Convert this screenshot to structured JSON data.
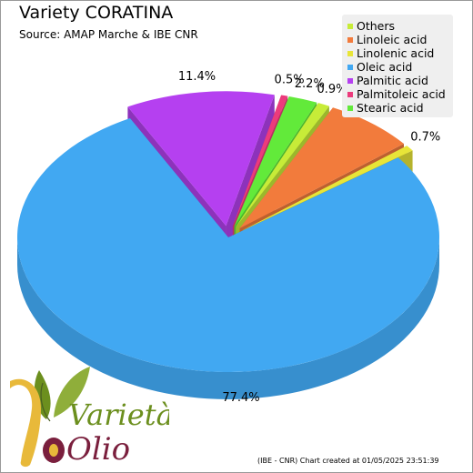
{
  "chart_data": {
    "type": "pie",
    "title": "Variety CORATINA",
    "subtitle": "Source: AMAP Marche & IBE CNR",
    "legend_position": "top-right",
    "categories": [
      "Others",
      "Linoleic acid",
      "Linolenic acid",
      "Oleic acid",
      "Palmitic acid",
      "Palmitoleic acid",
      "Stearic acid"
    ],
    "values": [
      0.9,
      6.9,
      0.7,
      77.4,
      11.4,
      0.5,
      2.2
    ],
    "labels": [
      "0.9%",
      "6.9%",
      "0.7%",
      "77.4%",
      "11.4%",
      "0.5%",
      "2.2%"
    ],
    "colors": [
      "#c7ec38",
      "#f27b3c",
      "#e8e538",
      "#41a8f2",
      "#b540f0",
      "#ec3b7c",
      "#62ea3a"
    ]
  },
  "footer": "(IBE - CNR) Chart created at 01/05/2025 23:51:39",
  "logo": {
    "line1": "Varietà",
    "line2": "Olio",
    "colors": {
      "green": "#6c8f1e",
      "dark_green": "#4a5e22",
      "gold": "#e8b93a",
      "maroon": "#7a1f3d"
    }
  }
}
